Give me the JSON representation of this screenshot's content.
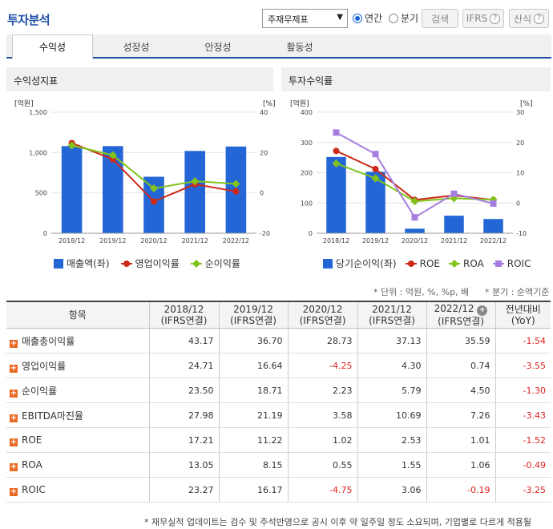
{
  "header": {
    "title": "투자분석",
    "select_value": "주재무제표",
    "radio_annual": "연간",
    "radio_quarter": "분기",
    "search_label": "검색",
    "ifrs_label": "IFRS",
    "formula_label": "산식"
  },
  "tabs": [
    "수익성",
    "성장성",
    "안정성",
    "활동성"
  ],
  "chart_data": [
    {
      "type": "bar",
      "title": "수익성지표",
      "ylabel_left": "[억원]",
      "ylabel_right": "[%]",
      "categories": [
        "2018/12",
        "2019/12",
        "2020/12",
        "2021/12",
        "2022/12"
      ],
      "ylim_left": [
        0,
        1500
      ],
      "yticks_left": [
        "0",
        "500",
        "1,000",
        "1,500"
      ],
      "ylim_right": [
        -20,
        40
      ],
      "yticks_right": [
        "-20",
        "0",
        "20",
        "40"
      ],
      "series": [
        {
          "name": "매출액(좌)",
          "type": "bar",
          "axis": "left",
          "color": "#2466d6",
          "values": [
            1080,
            1080,
            700,
            1020,
            1075
          ]
        },
        {
          "name": "영업이익률",
          "type": "line",
          "axis": "right",
          "color": "#cc2a17",
          "values": [
            24.71,
            16.64,
            -4.25,
            4.3,
            0.74
          ]
        },
        {
          "name": "순이익률",
          "type": "line",
          "axis": "right",
          "color": "#82c31b",
          "values": [
            23.5,
            18.71,
            2.23,
            5.79,
            4.5
          ]
        }
      ]
    },
    {
      "type": "bar",
      "title": "투자수익률",
      "ylabel_left": "[억원]",
      "ylabel_right": "[%]",
      "categories": [
        "2018/12",
        "2019/12",
        "2020/12",
        "2021/12",
        "2022/12"
      ],
      "ylim_left": [
        0,
        400
      ],
      "yticks_left": [
        "0",
        "100",
        "200",
        "300",
        "400"
      ],
      "ylim_right": [
        -10,
        30
      ],
      "yticks_right": [
        "-10",
        "0",
        "10",
        "20",
        "30"
      ],
      "series": [
        {
          "name": "당기순이익(좌)",
          "type": "bar",
          "axis": "left",
          "color": "#2466d6",
          "values": [
            252,
            203,
            15,
            58,
            47
          ]
        },
        {
          "name": "ROE",
          "type": "line",
          "axis": "right",
          "color": "#cc2a17",
          "values": [
            17.21,
            11.22,
            1.02,
            2.53,
            1.01
          ]
        },
        {
          "name": "ROA",
          "type": "line",
          "axis": "right",
          "color": "#82c31b",
          "values": [
            13.05,
            8.15,
            0.55,
            1.55,
            1.06
          ]
        },
        {
          "name": "ROIC",
          "type": "line",
          "axis": "right",
          "color": "#a57ee0",
          "values": [
            23.27,
            16.17,
            -4.75,
            3.06,
            -0.19
          ]
        }
      ]
    }
  ],
  "notes": {
    "unit": "* 단위 : 억원, %, %p, 배",
    "quarter": "* 분기 : 순액기준",
    "footer": "* 재무실적 업데이트는 검수 및 주석반영으로 공시 이후 약 일주일 정도 소요되며, 기업별로 다르게 적용될"
  },
  "table": {
    "item_header": "항목",
    "columns": [
      {
        "year": "2018/12",
        "basis": "(IFRS연결)"
      },
      {
        "year": "2019/12",
        "basis": "(IFRS연결)"
      },
      {
        "year": "2020/12",
        "basis": "(IFRS연결)"
      },
      {
        "year": "2021/12",
        "basis": "(IFRS연결)"
      },
      {
        "year": "2022/12",
        "basis": "(IFRS연결)"
      }
    ],
    "yoy_header": "전년대비",
    "yoy_sub": "(YoY)",
    "rows": [
      {
        "label": "매출총이익률",
        "values": [
          "43.17",
          "36.70",
          "28.73",
          "37.13",
          "35.59"
        ],
        "yoy": "-1.54"
      },
      {
        "label": "영업이익률",
        "values": [
          "24.71",
          "16.64",
          "-4.25",
          "4.30",
          "0.74"
        ],
        "yoy": "-3.55"
      },
      {
        "label": "순이익률",
        "values": [
          "23.50",
          "18.71",
          "2.23",
          "5.79",
          "4.50"
        ],
        "yoy": "-1.30"
      },
      {
        "label": "EBITDA마진율",
        "values": [
          "27.98",
          "21.19",
          "3.58",
          "10.69",
          "7.26"
        ],
        "yoy": "-3.43"
      },
      {
        "label": "ROE",
        "values": [
          "17.21",
          "11.22",
          "1.02",
          "2.53",
          "1.01"
        ],
        "yoy": "-1.52"
      },
      {
        "label": "ROA",
        "values": [
          "13.05",
          "8.15",
          "0.55",
          "1.55",
          "1.06"
        ],
        "yoy": "-0.49"
      },
      {
        "label": "ROIC",
        "values": [
          "23.27",
          "16.17",
          "-4.75",
          "3.06",
          "-0.19"
        ],
        "yoy": "-3.25"
      }
    ]
  }
}
